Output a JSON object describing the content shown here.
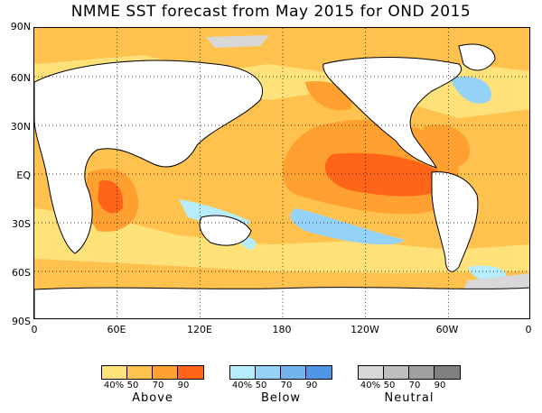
{
  "title": "NMME SST forecast from May 2015 for OND 2015",
  "lat_labels": [
    "90N",
    "60N",
    "30N",
    "EQ",
    "30S",
    "60S",
    "90S"
  ],
  "lon_labels": [
    "0",
    "60E",
    "120E",
    "180",
    "120W",
    "60W",
    "0"
  ],
  "legend": [
    {
      "name": "Above",
      "ticks": [
        "40%",
        "50",
        "70",
        "90"
      ],
      "colors": [
        "#ffe17a",
        "#ffc24e",
        "#ffa030",
        "#ff6418"
      ]
    },
    {
      "name": "Below",
      "ticks": [
        "40%",
        "50",
        "70",
        "90"
      ],
      "colors": [
        "#b6ecfb",
        "#94d2f7",
        "#74b4ee",
        "#4f96e6"
      ]
    },
    {
      "name": "Neutral",
      "ticks": [
        "40%",
        "50",
        "70",
        "90"
      ],
      "colors": [
        "#d8d8d8",
        "#bfbfbf",
        "#a0a0a0",
        "#808080"
      ]
    }
  ],
  "colors": {
    "land": "#ffffff",
    "coast": "#000000"
  }
}
